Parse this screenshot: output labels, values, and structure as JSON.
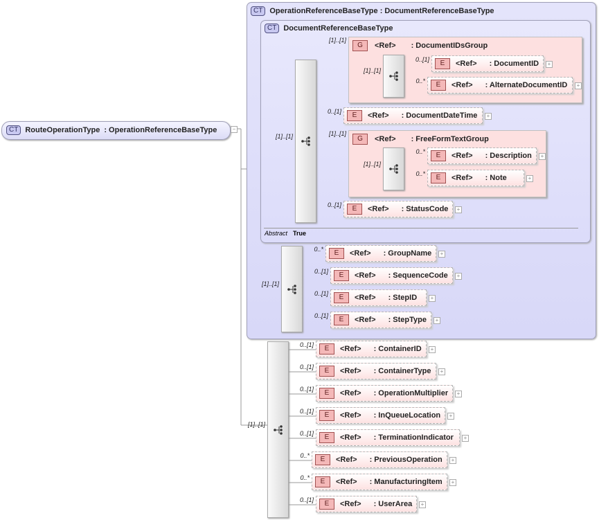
{
  "root": {
    "badge": "CT",
    "name": "RouteOperationType",
    "base": ": OperationReferenceBaseType"
  },
  "outer_ct": {
    "badge": "CT",
    "title": "OperationReferenceBaseType : DocumentReferenceBaseType"
  },
  "inner_ct": {
    "badge": "CT",
    "title": "DocumentReferenceBaseType",
    "abstract_label": "Abstract",
    "abstract_value": "True"
  },
  "groups": [
    {
      "badge": "G",
      "ref": "<Ref>",
      "name": ": DocumentIDsGroup",
      "occurrence": "[1]..[1]",
      "seq_occurrence": "[1]..[1]"
    },
    {
      "badge": "G",
      "ref": "<Ref>",
      "name": ": FreeFormTextGroup",
      "occurrence": "[1]..[1]",
      "seq_occurrence": "[1]..[1]"
    }
  ],
  "sequence_occurrences": [
    "[1]..[1]",
    "[1]..[1]",
    "[1]..[1]"
  ],
  "elements": [
    {
      "ref": "<Ref>",
      "name": ": DocumentID",
      "occurrence": "0..[1]"
    },
    {
      "ref": "<Ref>",
      "name": ": AlternateDocumentID",
      "occurrence": "0..*"
    },
    {
      "ref": "<Ref>",
      "name": ": DocumentDateTime",
      "occurrence": "0..[1]"
    },
    {
      "ref": "<Ref>",
      "name": ": Description",
      "occurrence": "0..*"
    },
    {
      "ref": "<Ref>",
      "name": ": Note",
      "occurrence": "0..*"
    },
    {
      "ref": "<Ref>",
      "name": ": StatusCode",
      "occurrence": "0..[1]"
    },
    {
      "ref": "<Ref>",
      "name": ": GroupName",
      "occurrence": "0..*"
    },
    {
      "ref": "<Ref>",
      "name": ": SequenceCode",
      "occurrence": "0..[1]"
    },
    {
      "ref": "<Ref>",
      "name": ": StepID",
      "occurrence": "0..[1]"
    },
    {
      "ref": "<Ref>",
      "name": ": StepType",
      "occurrence": "0..[1]"
    },
    {
      "ref": "<Ref>",
      "name": ": ContainerID",
      "occurrence": "0..[1]"
    },
    {
      "ref": "<Ref>",
      "name": ": ContainerType",
      "occurrence": "0..[1]"
    },
    {
      "ref": "<Ref>",
      "name": ": OperationMultiplier",
      "occurrence": "0..[1]"
    },
    {
      "ref": "<Ref>",
      "name": ": InQueueLocation",
      "occurrence": "0..[1]"
    },
    {
      "ref": "<Ref>",
      "name": ": TerminationIndicator",
      "occurrence": "0..[1]"
    },
    {
      "ref": "<Ref>",
      "name": ": PreviousOperation",
      "occurrence": "0..*"
    },
    {
      "ref": "<Ref>",
      "name": ": ManufacturingItem",
      "occurrence": "0..*"
    },
    {
      "ref": "<Ref>",
      "name": ": UserArea",
      "occurrence": "0..[1]"
    }
  ],
  "element_badge": "E",
  "colors": {
    "complex_type": "#dcdcf8",
    "element": "#fde2e2",
    "group": "#fde0e0"
  }
}
